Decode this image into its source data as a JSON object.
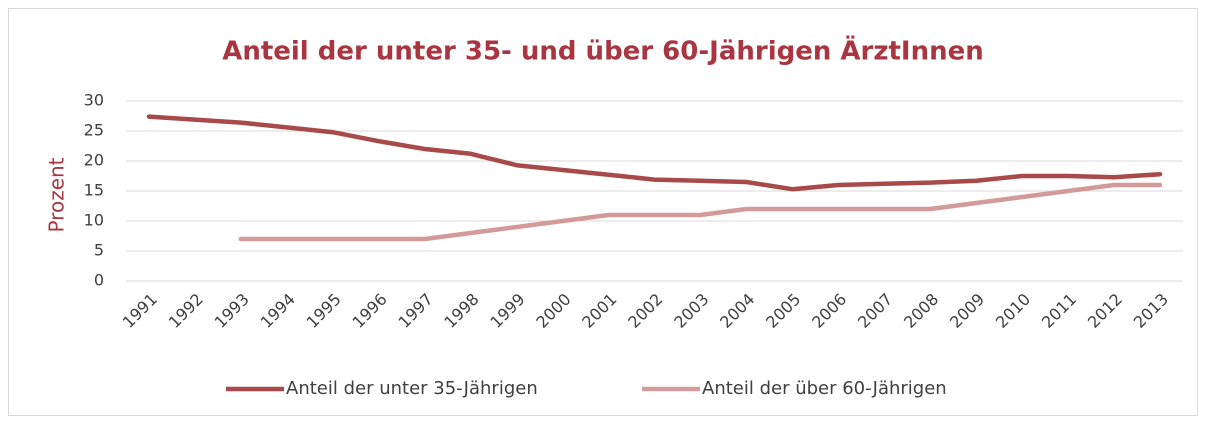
{
  "chart_data": {
    "type": "line",
    "title": "Anteil der unter 35- und über 60-Jährigen ÄrztInnen",
    "y_label": "Prozent",
    "categories": [
      "1991",
      "1992",
      "1993",
      "1994",
      "1995",
      "1996",
      "1997",
      "1998",
      "1999",
      "2000",
      "2001",
      "2002",
      "2003",
      "2004",
      "2005",
      "2006",
      "2007",
      "2008",
      "2009",
      "2010",
      "2011",
      "2012",
      "2013"
    ],
    "series": [
      {
        "name": "Anteil der unter 35-Jährigen",
        "color": "#a94a4a",
        "values": [
          27.4,
          26.9,
          26.4,
          25.6,
          24.8,
          23.3,
          22.0,
          21.2,
          19.3,
          18.5,
          17.7,
          16.9,
          16.7,
          16.5,
          15.3,
          16.0,
          16.2,
          16.4,
          16.7,
          17.5,
          17.5,
          17.3,
          17.8
        ]
      },
      {
        "name": "Anteil der über 60-Jährigen",
        "color": "#d39a9a",
        "values": [
          null,
          null,
          7,
          7,
          7,
          7,
          7,
          8,
          9,
          10,
          11,
          11,
          11,
          12,
          12,
          12,
          12,
          12,
          13,
          14,
          15,
          16,
          16
        ]
      }
    ],
    "ylim": [
      0,
      30
    ],
    "yticks": [
      0,
      5,
      10,
      15,
      20,
      25,
      30
    ],
    "grid": true,
    "legend": "bottom"
  }
}
